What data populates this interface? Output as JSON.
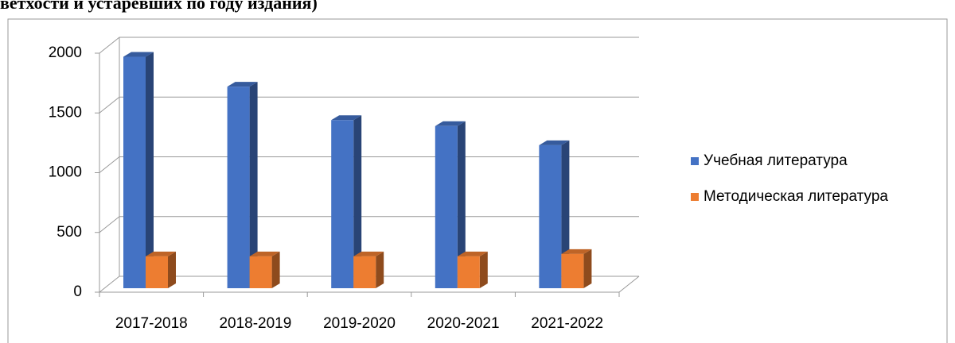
{
  "chart_data": {
    "type": "bar3d",
    "title": "ветхости и устаревших по году издания)",
    "categories": [
      "2017-2018",
      "2018-2019",
      "2019-2020",
      "2020-2021",
      "2021-2022"
    ],
    "series": [
      {
        "name": "Учебная литература",
        "color": "#4472c4",
        "values": [
          1970,
          1720,
          1440,
          1390,
          1230
        ]
      },
      {
        "name": "Методическая литература",
        "color": "#ed7d31",
        "values": [
          300,
          300,
          300,
          300,
          320
        ]
      }
    ],
    "ylim": [
      0,
      2000
    ],
    "yticks": [
      0,
      500,
      1000,
      1500,
      2000
    ],
    "grid": true,
    "legend": "right"
  }
}
